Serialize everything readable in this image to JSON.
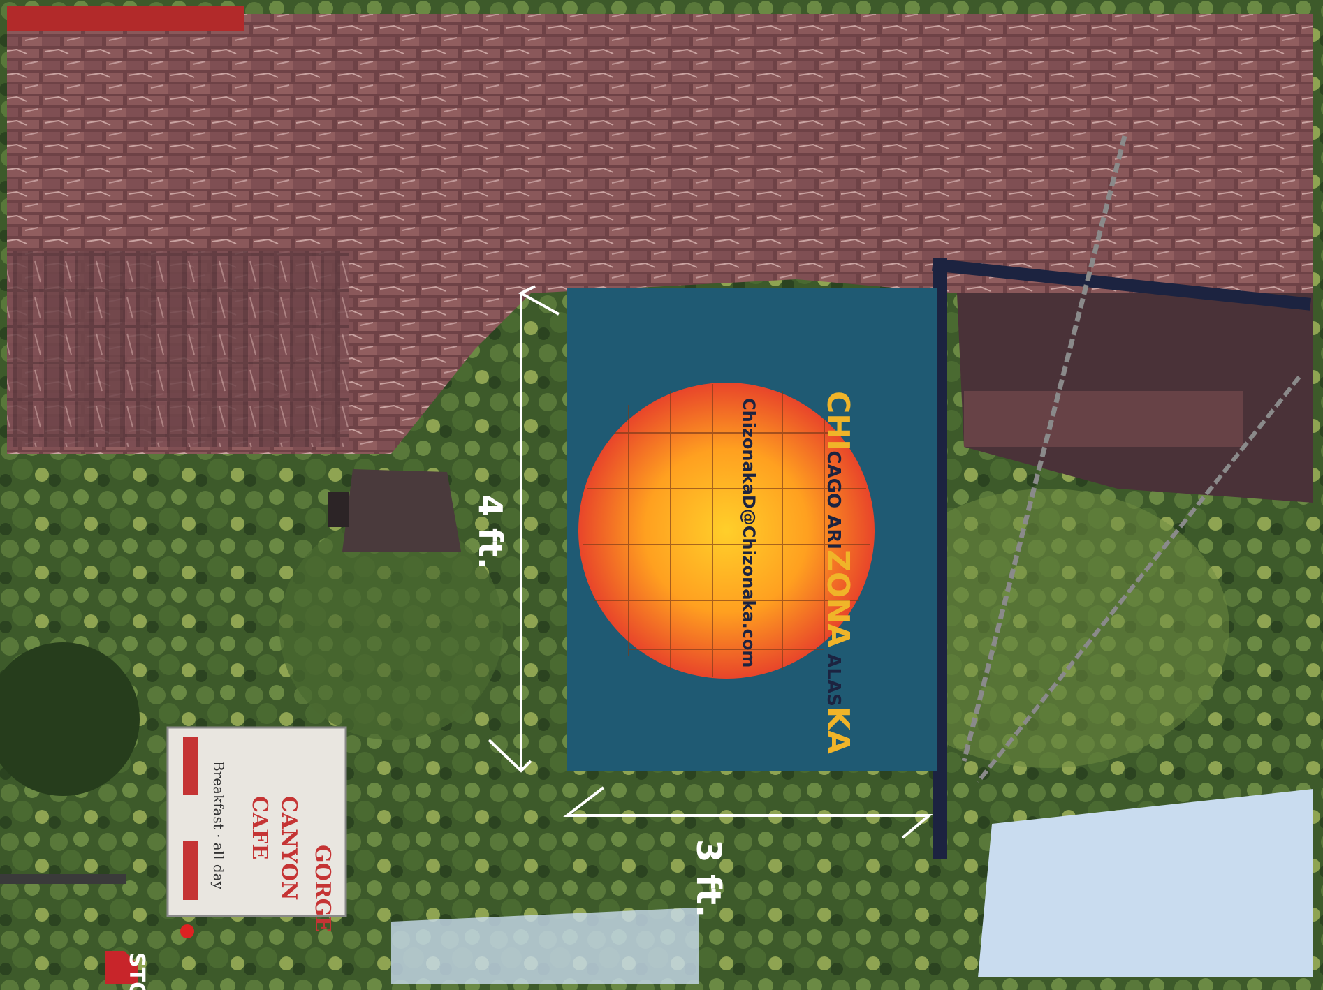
{
  "colors": {
    "brick": "#7a4a4c",
    "brick_light": "#b88a8a",
    "mortar": "#5c3a3e",
    "foliage_dark": "#2f4a24",
    "foliage": "#4f6d33",
    "foliage_light": "#8a9a48",
    "sky": "#c9dcef",
    "panel_blue": "#1f5a73",
    "sun_outer": "#e8452a",
    "sun_inner": "#ffb020",
    "accent_gold": "#f0b429",
    "frame": "#1c2340",
    "dimension_line": "#ffffff"
  },
  "hanging_sign": {
    "brand_parts": [
      {
        "text": "CHI",
        "style": "large"
      },
      {
        "text": "CAGO ",
        "style": "small"
      },
      {
        "text": "ARI",
        "style": "small"
      },
      {
        "text": "ZONA",
        "style": "large"
      },
      {
        "text": " ALAS",
        "style": "small"
      },
      {
        "text": "KA",
        "style": "large"
      }
    ],
    "email": "ChizonakaD@Chizonaka.com"
  },
  "dimensions": {
    "width_label": "4 ft.",
    "height_label": "3 ft."
  },
  "street_sign": {
    "line1": "GORGE",
    "line2": "CANYON",
    "line3": "CAFE",
    "line4": "Breakfast · all day"
  },
  "stop_sign": {
    "text": "STOP"
  }
}
